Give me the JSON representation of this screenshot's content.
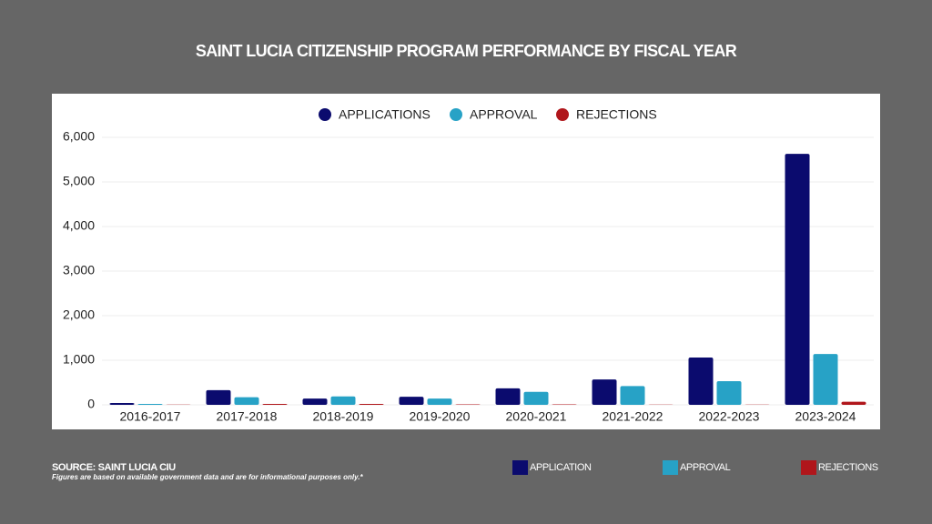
{
  "chart_data": {
    "type": "bar",
    "title": "SAINT LUCIA CITIZENSHIP PROGRAM PERFORMANCE BY FISCAL YEAR",
    "categories": [
      "2016-2017",
      "2017-2018",
      "2018-2019",
      "2019-2020",
      "2020-2021",
      "2021-2022",
      "2022-2023",
      "2023-2024"
    ],
    "series": [
      {
        "name": "APPLICATIONS",
        "color": "#0b0b6e",
        "values": [
          40,
          330,
          140,
          180,
          370,
          570,
          1060,
          5630
        ]
      },
      {
        "name": "APPROVAL",
        "color": "#27a2c6",
        "values": [
          20,
          170,
          190,
          140,
          290,
          420,
          530,
          1140
        ]
      },
      {
        "name": "REJECTIONS",
        "color": "#b0161b",
        "values": [
          5,
          20,
          20,
          10,
          10,
          5,
          5,
          70
        ]
      }
    ],
    "ylim": [
      0,
      6000
    ],
    "yticks": [
      0,
      {
        "value": 1000,
        "label": "1,000"
      },
      {
        "value": 2000,
        "label": "2,000"
      },
      {
        "value": 3000,
        "label": "3,000"
      },
      {
        "value": 4000,
        "label": "4,000"
      },
      {
        "value": 5000,
        "label": "5,000"
      },
      {
        "value": 6000,
        "label": "6,000"
      }
    ],
    "grid": true,
    "legend": "top",
    "footer_legend": [
      {
        "label": "APPLICATION",
        "color": "#0b0b6e"
      },
      {
        "label": "APPROVAL",
        "color": "#27a2c6"
      },
      {
        "label": "REJECTIONS",
        "color": "#b0161b"
      }
    ],
    "source": "SOURCE: SAINT LUCIA CIU",
    "note": "Figures are based on available government data and are for informational purposes only.*"
  }
}
